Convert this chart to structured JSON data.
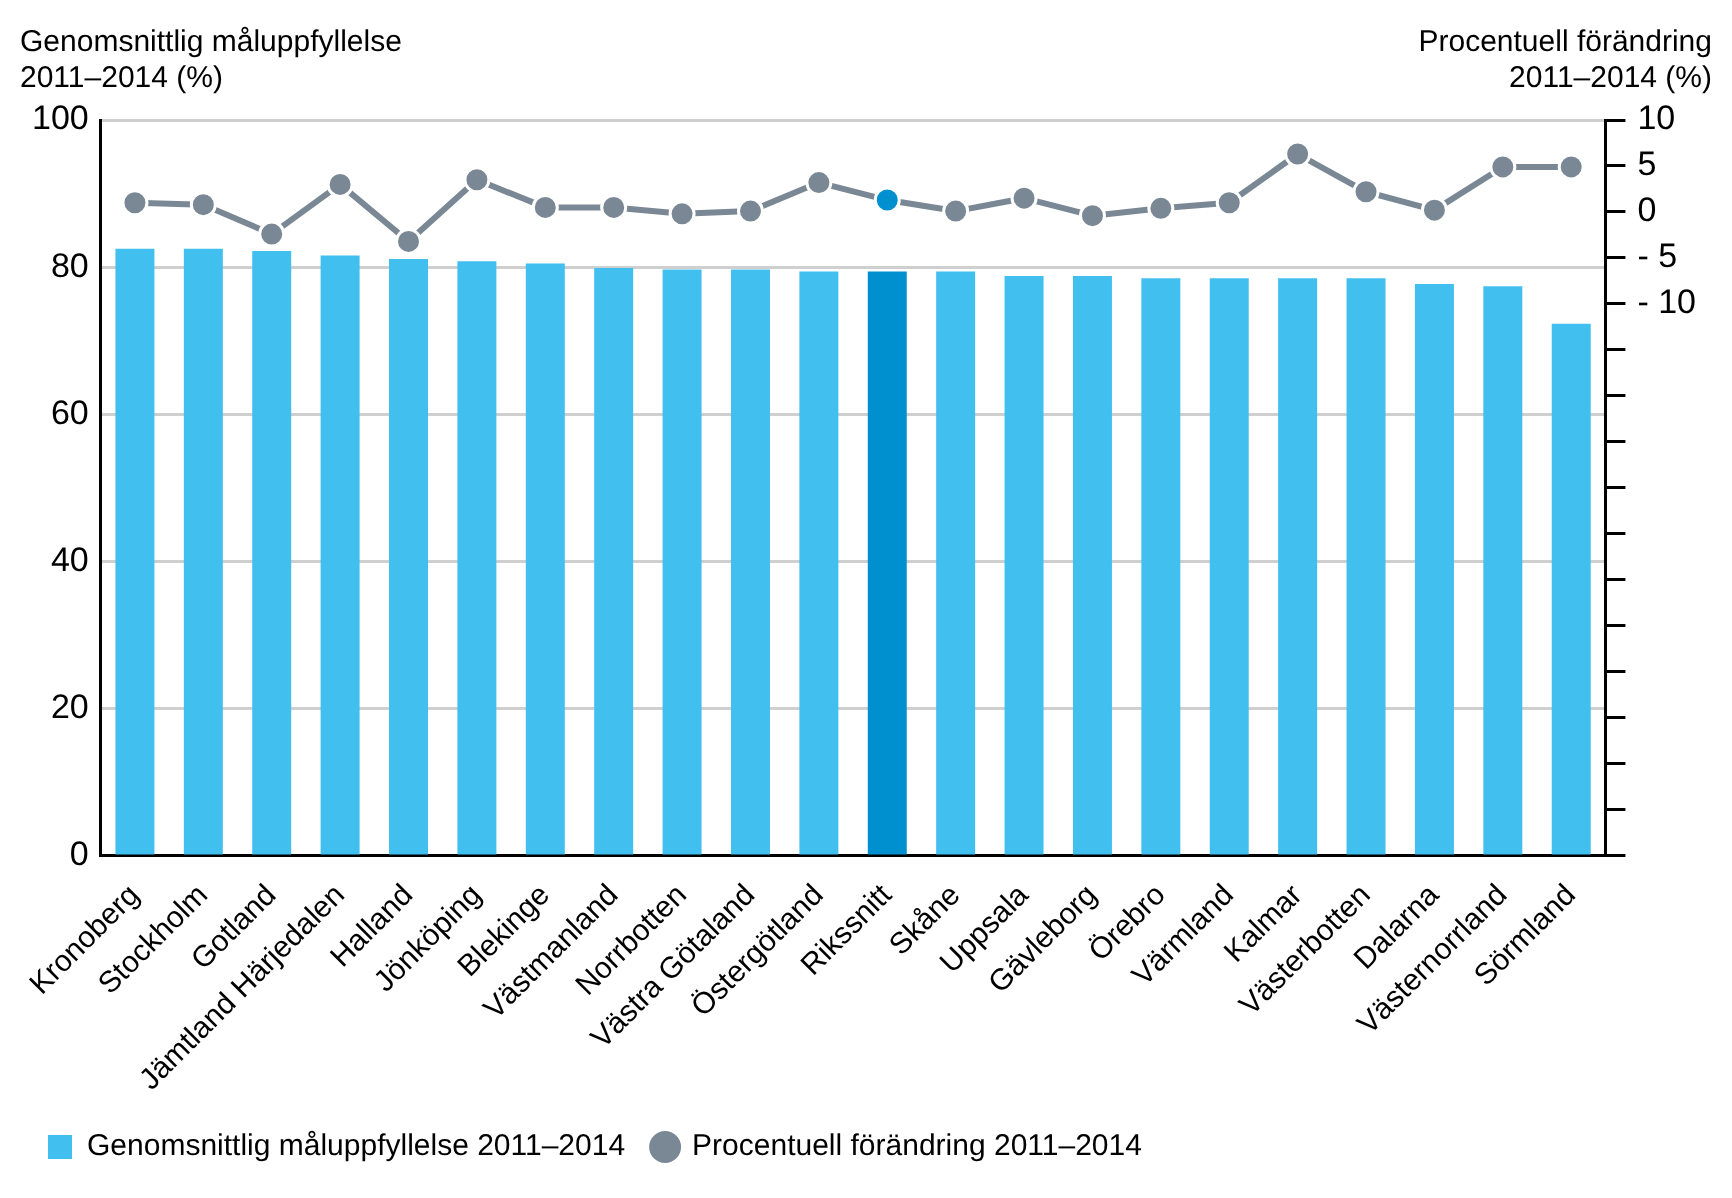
{
  "chart_data": {
    "type": "bar",
    "ylabel": "Genomsnittlig måluppfyllelse\n2011–2014 (%)",
    "y2label": "Procentuell förändring\n2011–2014 (%)",
    "categories": [
      "Kronoberg",
      "Stockholm",
      "Gotland",
      "Jämtland Härjedalen",
      "Halland",
      "Jönköping",
      "Blekinge",
      "Västmanland",
      "Norrbotten",
      "Västra Götaland",
      "Östergötland",
      "Rikssnitt",
      "Skåne",
      "Uppsala",
      "Gävleborg",
      "Örebro",
      "Värmland",
      "Kalmar",
      "Västerbotten",
      "Dalarna",
      "Västernorrland",
      "Sörmland"
    ],
    "series": [
      {
        "name": "Genomsnittlig måluppfyllelse 2011–2014",
        "color": "#41bfee",
        "colors": [
          "#41bfee",
          "#41bfee",
          "#41bfee",
          "#41bfee",
          "#41bfee",
          "#41bfee",
          "#41bfee",
          "#41bfee",
          "#41bfee",
          "#41bfee",
          "#41bfee",
          "#0090d0",
          "#41bfee",
          "#41bfee",
          "#41bfee",
          "#41bfee",
          "#41bfee",
          "#41bfee",
          "#41bfee",
          "#41bfee",
          "#41bfee",
          "#41bfee"
        ],
        "values": [
          82.5,
          82.5,
          82.2,
          81.6,
          81.1,
          80.8,
          80.5,
          79.9,
          79.7,
          79.7,
          79.4,
          79.4,
          79.4,
          78.8,
          78.8,
          78.5,
          78.5,
          78.5,
          78.5,
          77.7,
          77.4,
          72.3
        ]
      },
      {
        "name": "Procentuell förändring 2011–2014",
        "type": "line",
        "axis": "y2",
        "marker": "circle",
        "color": "#7a8896",
        "colors": [
          "#7a8896",
          "#7a8896",
          "#7a8896",
          "#7a8896",
          "#7a8896",
          "#7a8896",
          "#7a8896",
          "#7a8896",
          "#7a8896",
          "#7a8896",
          "#7a8896",
          "#0090d0",
          "#7a8896",
          "#7a8896",
          "#7a8896",
          "#7a8896",
          "#7a8896",
          "#7a8896",
          "#7a8896",
          "#7a8896",
          "#7a8896",
          "#7a8896"
        ],
        "values": [
          1.0,
          0.8,
          -2.4,
          3.0,
          -3.2,
          3.5,
          0.5,
          0.5,
          -0.2,
          0.1,
          3.2,
          1.3,
          0.1,
          1.5,
          -0.4,
          0.4,
          1.0,
          6.3,
          2.2,
          0.2,
          4.9,
          4.9
        ]
      }
    ],
    "ylim": [
      0,
      100
    ],
    "yticks": [
      0,
      20,
      40,
      60,
      80,
      100
    ],
    "y2lim": [
      -70,
      10
    ],
    "y2ticks": [
      {
        "value": -70,
        "label": null
      },
      {
        "value": -65,
        "label": null
      },
      {
        "value": -60,
        "label": null
      },
      {
        "value": -55,
        "label": null
      },
      {
        "value": -50,
        "label": null
      },
      {
        "value": -45,
        "label": null
      },
      {
        "value": -40,
        "label": null
      },
      {
        "value": -35,
        "label": null
      },
      {
        "value": -30,
        "label": null
      },
      {
        "value": -25,
        "label": null
      },
      {
        "value": -20,
        "label": null
      },
      {
        "value": -15,
        "label": null
      },
      {
        "value": -10,
        "label": "- 10"
      },
      {
        "value": -5,
        "label": "- 5"
      },
      0,
      5,
      10
    ],
    "grid": "y",
    "legend": "bottom left"
  }
}
